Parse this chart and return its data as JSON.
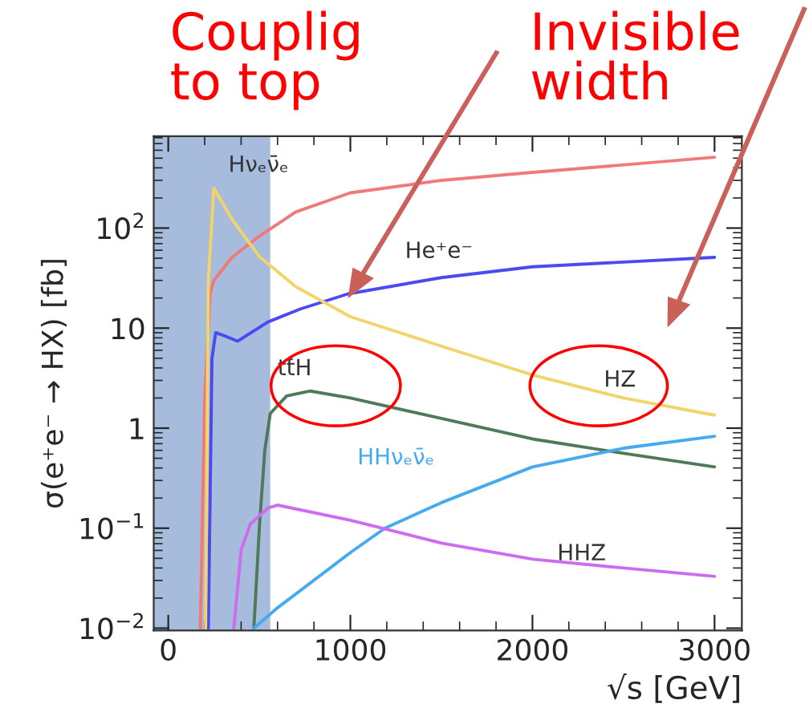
{
  "chart_data": {
    "type": "line",
    "xlabel": "√s [GeV]",
    "ylabel": "σ(e⁺e⁻ → HX) [fb]",
    "annotations": [
      "Couplig\nto top",
      "Invisible\nwidth"
    ],
    "log": "y",
    "xlim": [
      -80,
      3150
    ],
    "ylim": [
      0.0095,
      830
    ],
    "xticks": [
      0,
      1000,
      2000,
      3000
    ],
    "yticks": [
      {
        "value": 0.01,
        "label": "10$^{−2}$"
      },
      {
        "value": 0.1,
        "label": "10$^{−1}$"
      },
      1,
      10,
      {
        "value": 100,
        "label": "10$^{2}$"
      }
    ],
    "grid": false,
    "legend": false,
    "bands": [
      {
        "axis": "x",
        "from": -80,
        "to": 560,
        "color": "#9db4d8"
      }
    ],
    "series": [
      {
        "name": "Hνₑν̄ₑ",
        "color": "#f07a7a",
        "x": [
          176,
          200,
          230,
          250,
          350,
          500,
          700,
          1000,
          1500,
          2000,
          3000
        ],
        "values": [
          0.01,
          2,
          22,
          30,
          51,
          83,
          145,
          225,
          300,
          360,
          510
        ]
      },
      {
        "name": "He⁺e⁻",
        "color": "#4a4af0",
        "x": [
          220,
          240,
          260,
          300,
          380,
          547,
          724,
          988,
          1500,
          2000,
          3000
        ],
        "values": [
          0.01,
          5,
          9,
          8.5,
          7.4,
          11.5,
          15.5,
          22,
          32,
          41,
          51
        ]
      },
      {
        "name": "HZ",
        "color": "#f2d46a",
        "x": [
          205,
          220,
          250,
          353,
          500,
          700,
          1000,
          1500,
          2000,
          2500,
          3000
        ],
        "values": [
          0.01,
          30,
          250,
          120,
          52,
          26,
          13,
          6.6,
          3.4,
          2.0,
          1.35
        ]
      },
      {
        "name": "tt̄H",
        "color": "#4f7a5a",
        "x": [
          470,
          500,
          530,
          560,
          650,
          780,
          1000,
          1500,
          2000,
          2500,
          3000
        ],
        "values": [
          0.01,
          0.1,
          0.6,
          1.4,
          2.1,
          2.35,
          2.0,
          1.25,
          0.78,
          0.56,
          0.41
        ]
      },
      {
        "name": "HHνₑν̄ₑ",
        "color": "#45aaf0",
        "x": [
          470,
          600,
          1000,
          1190,
          1500,
          2000,
          2500,
          3000
        ],
        "values": [
          0.01,
          0.016,
          0.057,
          0.1,
          0.18,
          0.41,
          0.63,
          0.83
        ]
      },
      {
        "name": "HHZ",
        "color": "#cc6cee",
        "x": [
          360,
          400,
          450,
          550,
          600,
          1000,
          1500,
          2000,
          2500,
          3000
        ],
        "values": [
          0.01,
          0.06,
          0.11,
          0.16,
          0.17,
          0.12,
          0.071,
          0.049,
          0.04,
          0.033
        ]
      }
    ]
  }
}
